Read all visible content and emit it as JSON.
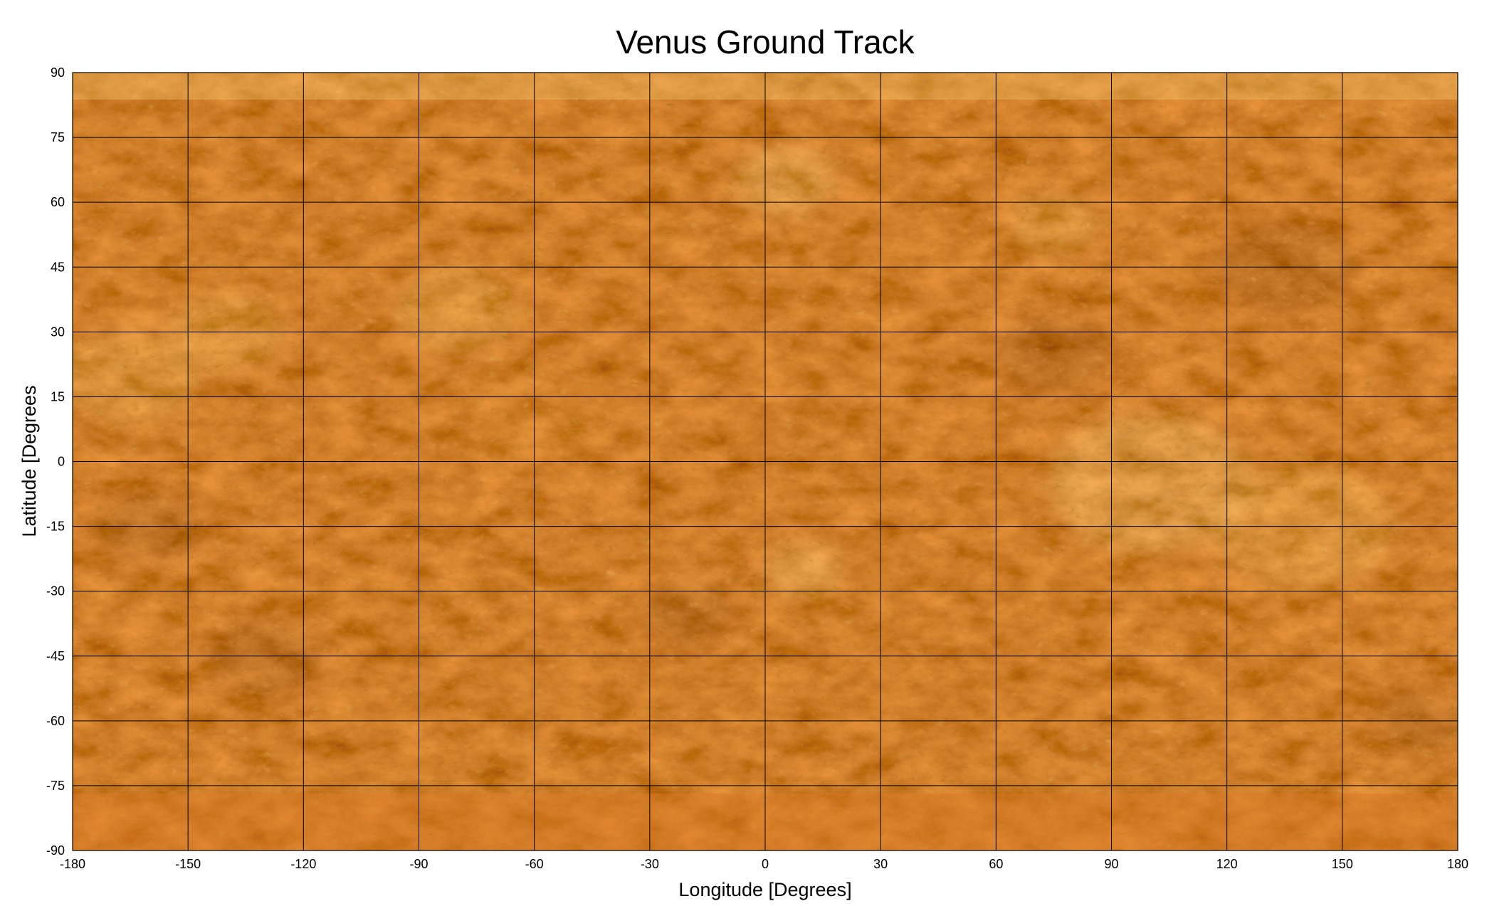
{
  "chart_data": {
    "type": "map",
    "title": "Venus Ground Track",
    "xlabel": "Longitude [Degrees]",
    "ylabel": "Latitude [Degrees",
    "xlim": [
      -180,
      180
    ],
    "ylim": [
      -90,
      90
    ],
    "x_ticks": [
      -180,
      -150,
      -120,
      -90,
      -60,
      -30,
      0,
      30,
      60,
      90,
      120,
      150,
      180
    ],
    "y_ticks": [
      90,
      75,
      60,
      45,
      30,
      15,
      0,
      -15,
      -30,
      -45,
      -60,
      -75,
      -90
    ],
    "x_tick_labels": [
      "-180",
      "-150",
      "-120",
      "-90",
      "-60",
      "-30",
      "0",
      "30",
      "60",
      "90",
      "120",
      "150",
      "180"
    ],
    "y_tick_labels": [
      "90",
      "75",
      "60",
      "45",
      "30",
      "15",
      "0",
      "-15",
      "-30",
      "-45",
      "-60",
      "-75",
      "-90"
    ],
    "grid": true,
    "background": "Venus surface radar mosaic, equirectangular projection",
    "colors": {
      "base": "#c8621c",
      "dark": "#6e1f0a",
      "mid": "#d97a26",
      "bright": "#f5c870",
      "highlight": "#fce2a0",
      "grid": "#000000"
    }
  }
}
